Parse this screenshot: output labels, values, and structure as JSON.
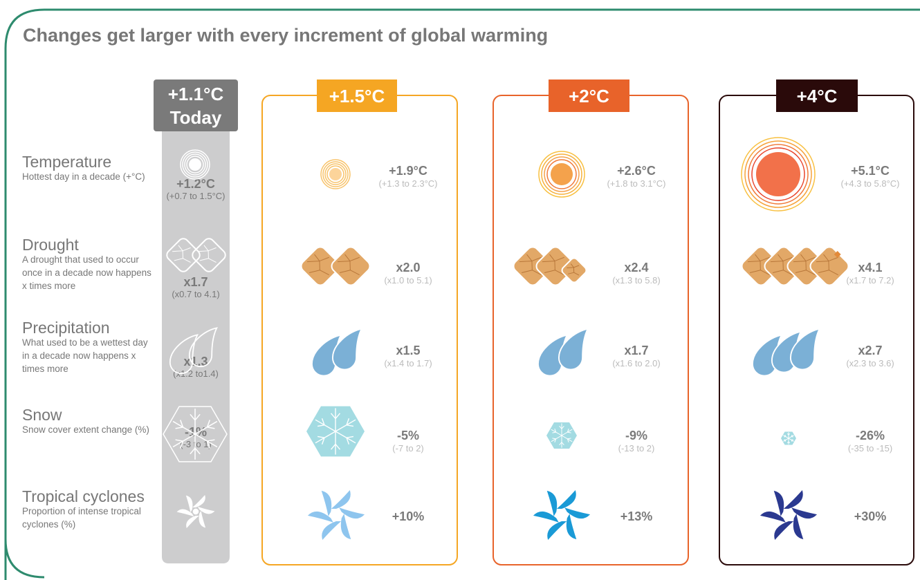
{
  "title": "Changes get larger with every increment of global warming",
  "rows": [
    {
      "name": "Temperature",
      "description": "Hottest day in a decade (+°C)"
    },
    {
      "name": "Drought",
      "description": "A drought that used to occur once in a decade now happens x times more"
    },
    {
      "name": "Precipitation",
      "description": "What used to be a wettest day in a decade now happens x times more"
    },
    {
      "name": "Snow",
      "description": "Snow cover extent change (%)"
    },
    {
      "name": "Tropical cyclones",
      "description": "Proportion of intense tropical cyclones (%)"
    }
  ],
  "scenarios": [
    {
      "label": "+1.1°C",
      "sublabel": "Today",
      "color": "#7a7a7a",
      "values": [
        {
          "value": "+1.2°C",
          "range": "(+0.7 to 1.5°C)"
        },
        {
          "value": "x1.7",
          "range": "(x0.7 to 4.1)"
        },
        {
          "value": "x1.3",
          "range": "(x1.2 to1.4)"
        },
        {
          "value": "-1%",
          "range": "(-3 to 1)"
        },
        null
      ]
    },
    {
      "label": "+1.5°C",
      "color": "#f5a623",
      "values": [
        {
          "value": "+1.9°C",
          "range": "(+1.3 to 2.3°C)"
        },
        {
          "value": "x2.0",
          "range": "(x1.0 to 5.1)"
        },
        {
          "value": "x1.5",
          "range": "(x1.4 to 1.7)"
        },
        {
          "value": "-5%",
          "range": "(-7 to 2)"
        },
        {
          "value": "+10%"
        }
      ]
    },
    {
      "label": "+2°C",
      "color": "#e8632a",
      "values": [
        {
          "value": "+2.6°C",
          "range": "(+1.8 to 3.1°C)"
        },
        {
          "value": "x2.4",
          "range": "(x1.3 to 5.8)"
        },
        {
          "value": "x1.7",
          "range": "(x1.6 to 2.0)"
        },
        {
          "value": "-9%",
          "range": "(-13 to 2)"
        },
        {
          "value": "+13%"
        }
      ]
    },
    {
      "label": "+4°C",
      "color": "#2a0a0a",
      "values": [
        {
          "value": "+5.1°C",
          "range": "(+4.3 to 5.8°C)"
        },
        {
          "value": "x4.1",
          "range": "(x1.7 to 7.2)"
        },
        {
          "value": "x2.7",
          "range": "(x2.3 to 3.6)"
        },
        {
          "value": "-26%",
          "range": "(-35 to -15)"
        },
        {
          "value": "+30%"
        }
      ]
    }
  ]
}
